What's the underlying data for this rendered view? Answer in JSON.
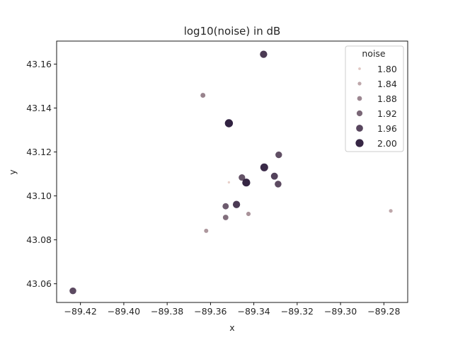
{
  "chart_data": {
    "type": "scatter",
    "title": "log10(noise) in dB",
    "xlabel": "x",
    "ylabel": "y",
    "xlim": [
      -89.431,
      -89.269
    ],
    "ylim": [
      43.0515,
      43.1705
    ],
    "x_ticks": [
      -89.42,
      -89.4,
      -89.38,
      -89.36,
      -89.34,
      -89.32,
      -89.3,
      -89.28
    ],
    "x_tick_labels": [
      "−89.42",
      "−89.40",
      "−89.38",
      "−89.36",
      "−89.34",
      "−89.32",
      "−89.30",
      "−89.28"
    ],
    "y_ticks": [
      43.06,
      43.08,
      43.1,
      43.12,
      43.14,
      43.16
    ],
    "y_tick_labels": [
      "43.06",
      "43.08",
      "43.10",
      "43.12",
      "43.14",
      "43.16"
    ],
    "grid": false,
    "hue_variable": "noise",
    "hue_range": [
      1.78,
      2.01
    ],
    "color_low": "#f1d8d0",
    "color_high": "#2d1e3e",
    "legend": {
      "title": "noise",
      "placement": "top-right",
      "entries": [
        {
          "label": "1.80",
          "value": 1.8
        },
        {
          "label": "1.84",
          "value": 1.84
        },
        {
          "label": "1.88",
          "value": 1.88
        },
        {
          "label": "1.92",
          "value": 1.92
        },
        {
          "label": "1.96",
          "value": 1.96
        },
        {
          "label": "2.00",
          "value": 2.0
        }
      ]
    },
    "points": [
      {
        "x": -89.4235,
        "y": 43.0568,
        "noise": 1.955
      },
      {
        "x": -89.3635,
        "y": 43.1458,
        "noise": 1.885
      },
      {
        "x": -89.3515,
        "y": 43.1331,
        "noise": 2.005
      },
      {
        "x": -89.3355,
        "y": 43.1645,
        "noise": 1.975
      },
      {
        "x": -89.3285,
        "y": 43.1187,
        "noise": 1.95
      },
      {
        "x": -89.3352,
        "y": 43.113,
        "noise": 1.995
      },
      {
        "x": -89.3455,
        "y": 43.1084,
        "noise": 1.945
      },
      {
        "x": -89.3305,
        "y": 43.109,
        "noise": 1.965
      },
      {
        "x": -89.3435,
        "y": 43.1061,
        "noise": 2.0
      },
      {
        "x": -89.3515,
        "y": 43.1062,
        "noise": 1.79
      },
      {
        "x": -89.3288,
        "y": 43.1054,
        "noise": 1.955
      },
      {
        "x": -89.348,
        "y": 43.0961,
        "noise": 1.975
      },
      {
        "x": -89.353,
        "y": 43.0953,
        "noise": 1.935
      },
      {
        "x": -89.3425,
        "y": 43.0918,
        "noise": 1.865
      },
      {
        "x": -89.353,
        "y": 43.0902,
        "noise": 1.91
      },
      {
        "x": -89.362,
        "y": 43.0841,
        "noise": 1.86
      },
      {
        "x": -89.2768,
        "y": 43.0932,
        "noise": 1.84
      }
    ]
  }
}
